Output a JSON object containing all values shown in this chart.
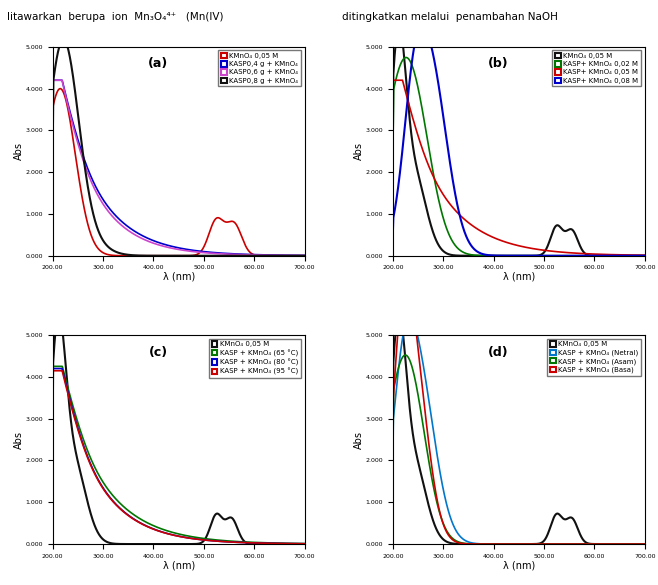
{
  "title_left": "litawarkan  berupa  ion  Mn₃O₄⁴⁺   (Mn(IV)",
  "title_right": "ditingkatkan melalui  penambahan NaOH",
  "xlim": [
    200,
    700
  ],
  "ylim": [
    0,
    5.0
  ],
  "xlabel": "λ (nm)",
  "ylabel": "Abs",
  "panels": {
    "a": {
      "label": "(a)",
      "legend": [
        {
          "text": "KMnO₄ 0,05 M",
          "color": "#cc0000",
          "lw": 1.2
        },
        {
          "text": "KASP0,4 g + KMnO₄",
          "color": "#0000cc",
          "lw": 1.2
        },
        {
          "text": "KASP0,6 g + KMnO₄",
          "color": "#cc44cc",
          "lw": 1.2
        },
        {
          "text": "KASP0,8 g + KMnO₄",
          "color": "#111111",
          "lw": 1.5
        }
      ]
    },
    "b": {
      "label": "(b)",
      "legend": [
        {
          "text": "KMnO₄ 0,05 M",
          "color": "#111111",
          "lw": 1.5
        },
        {
          "text": "KASP+ KMnO₄ 0,02 M",
          "color": "#007700",
          "lw": 1.2
        },
        {
          "text": "KASP+ KMnO₄ 0,05 M",
          "color": "#cc0000",
          "lw": 1.2
        },
        {
          "text": "KASP+ KMnO₄ 0,08 M",
          "color": "#0000cc",
          "lw": 1.5
        }
      ]
    },
    "c": {
      "label": "(c)",
      "legend": [
        {
          "text": "KMnO₄ 0,05 M",
          "color": "#111111",
          "lw": 1.5
        },
        {
          "text": "KASP + KMnO₄ (65 °C)",
          "color": "#007700",
          "lw": 1.2
        },
        {
          "text": "KASP + KMnO₄ (80 °C)",
          "color": "#0000cc",
          "lw": 1.2
        },
        {
          "text": "KASP + KMnO₄ (95 °C)",
          "color": "#cc0000",
          "lw": 1.2
        }
      ]
    },
    "d": {
      "label": "(d)",
      "legend": [
        {
          "text": "KMnO₄ 0,05 M",
          "color": "#111111",
          "lw": 1.5
        },
        {
          "text": "KASP + KMnO₄ (Netral)",
          "color": "#0077cc",
          "lw": 1.2
        },
        {
          "text": "KASP + KMnO₄ (Asam)",
          "color": "#007700",
          "lw": 1.2
        },
        {
          "text": "KASP + KMnO₄ (Basa)",
          "color": "#cc0000",
          "lw": 1.2
        }
      ]
    }
  }
}
